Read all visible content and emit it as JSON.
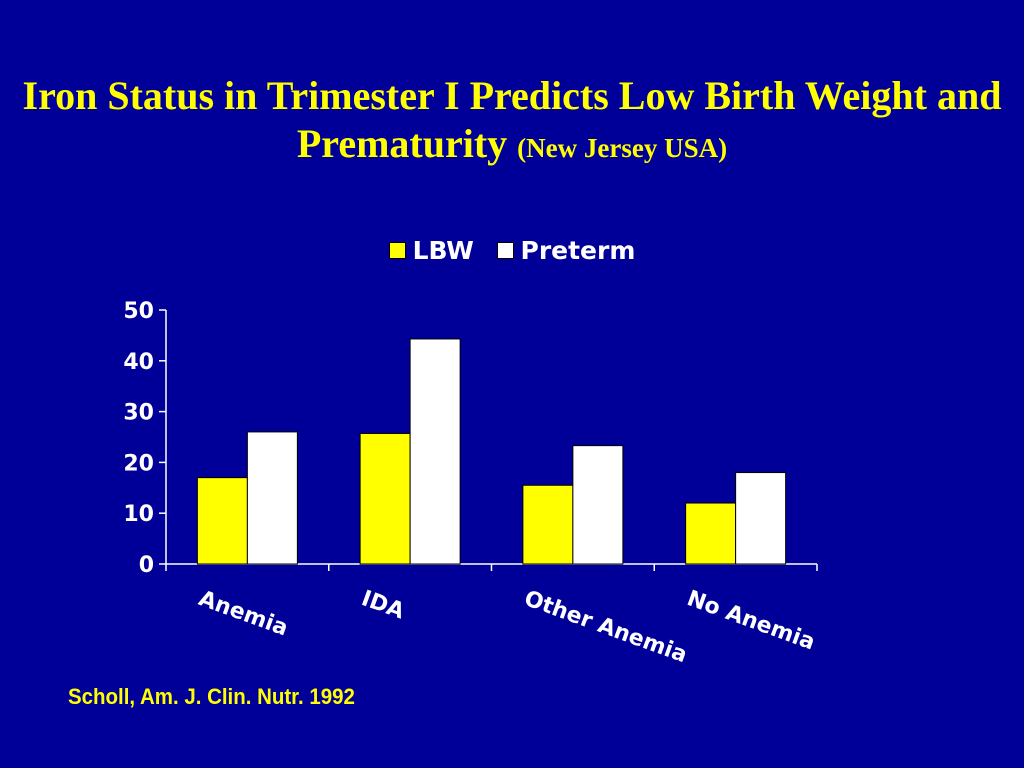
{
  "slide": {
    "title_main": "Iron Status in Trimester I Predicts Low Birth Weight and Prematurity",
    "title_sub": "(New Jersey USA)",
    "source": "Scholl,  Am. J. Clin. Nutr. 1992"
  },
  "colors": {
    "background": "#000099",
    "title": "#ffff00",
    "lbw": "#ffff00",
    "preterm": "#ffffff",
    "axis_text": "#ffffff"
  },
  "chart_data": {
    "type": "bar",
    "title": "",
    "xlabel": "",
    "ylabel": "",
    "categories": [
      "Anemia",
      "IDA",
      "Other Anemia",
      "No Anemia"
    ],
    "series": [
      {
        "name": "LBW",
        "values": [
          17,
          25.7,
          15.5,
          12
        ]
      },
      {
        "name": "Preterm",
        "values": [
          26,
          44.3,
          23.3,
          18
        ]
      }
    ],
    "ylim": [
      0,
      50
    ],
    "yticks": [
      0,
      10,
      20,
      30,
      40,
      50
    ],
    "grid": false,
    "legend": "top-center"
  }
}
